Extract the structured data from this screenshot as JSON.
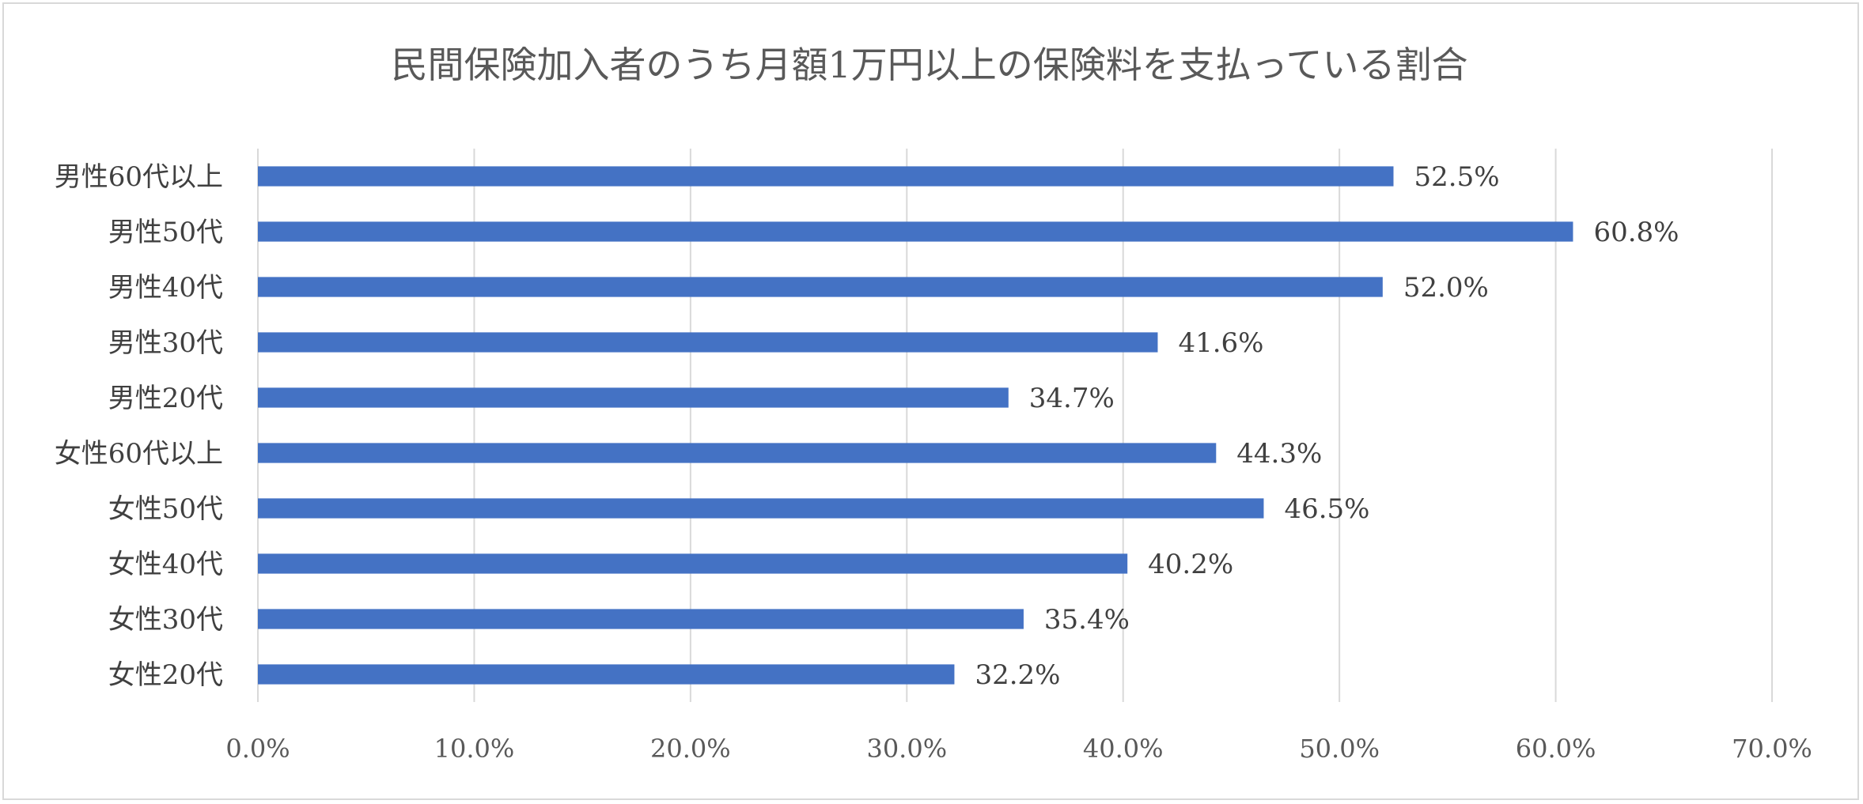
{
  "chart_data": {
    "type": "bar",
    "orientation": "horizontal",
    "title": "民間保険加入者のうち月額1万円以上の保険料を支払っている割合",
    "xlabel": "",
    "ylabel": "",
    "categories": [
      "男性60代以上",
      "男性50代",
      "男性40代",
      "男性30代",
      "男性20代",
      "女性60代以上",
      "女性50代",
      "女性40代",
      "女性30代",
      "女性20代"
    ],
    "values": [
      52.5,
      60.8,
      52.0,
      41.6,
      34.7,
      44.3,
      46.5,
      40.2,
      35.4,
      32.2
    ],
    "value_labels": [
      "52.5%",
      "60.8%",
      "52.0%",
      "41.6%",
      "34.7%",
      "44.3%",
      "46.5%",
      "40.2%",
      "35.4%",
      "32.2%"
    ],
    "xlim": [
      0,
      70
    ],
    "xticks": [
      0,
      10,
      20,
      30,
      40,
      50,
      60,
      70
    ],
    "xtick_labels": [
      "0.0%",
      "10.0%",
      "20.0%",
      "30.0%",
      "40.0%",
      "50.0%",
      "60.0%",
      "70.0%"
    ],
    "grid": true,
    "legend": "none",
    "bar_color": "#4472c4",
    "grid_color": "#d9d9d9"
  }
}
